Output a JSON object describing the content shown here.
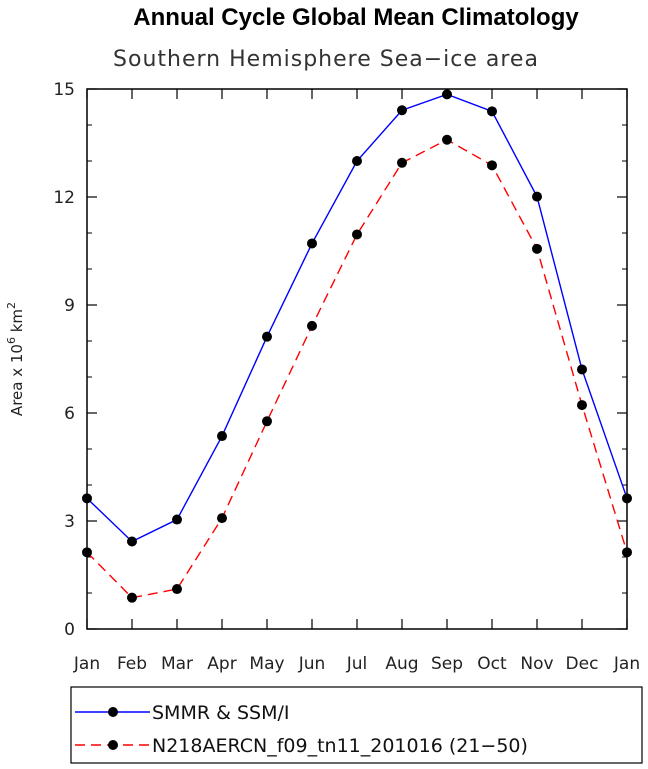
{
  "chart_data": {
    "type": "line",
    "title": "Annual Cycle Global Mean Climatology",
    "subtitle": "Southern Hemisphere Sea−ice area",
    "ylabel_main": "Area x 10",
    "ylabel_exp1": "6",
    "ylabel_unit": "km",
    "ylabel_exp2": "2",
    "xlabel": "",
    "categories": [
      "Jan",
      "Feb",
      "Mar",
      "Apr",
      "May",
      "Jun",
      "Jul",
      "Aug",
      "Sep",
      "Oct",
      "Nov",
      "Dec",
      "Jan"
    ],
    "ylim": [
      0,
      15
    ],
    "yticks": [
      0,
      3,
      6,
      9,
      12,
      15
    ],
    "grid": false,
    "legend_position": "bottom",
    "series": [
      {
        "name": "SMMR & SSM/I",
        "color": "#0000ff",
        "dash": "solid",
        "values": [
          3.63,
          2.43,
          3.04,
          5.36,
          8.12,
          10.71,
          13.0,
          14.41,
          14.85,
          14.38,
          12.01,
          7.21,
          3.63
        ]
      },
      {
        "name": "N218AERCN_f09_tn11_201016 (21−50)",
        "color": "#ff0000",
        "dash": "dashed",
        "values": [
          2.13,
          0.87,
          1.11,
          3.08,
          5.77,
          8.42,
          10.96,
          12.95,
          13.59,
          12.88,
          10.56,
          6.22,
          2.13
        ]
      }
    ]
  }
}
